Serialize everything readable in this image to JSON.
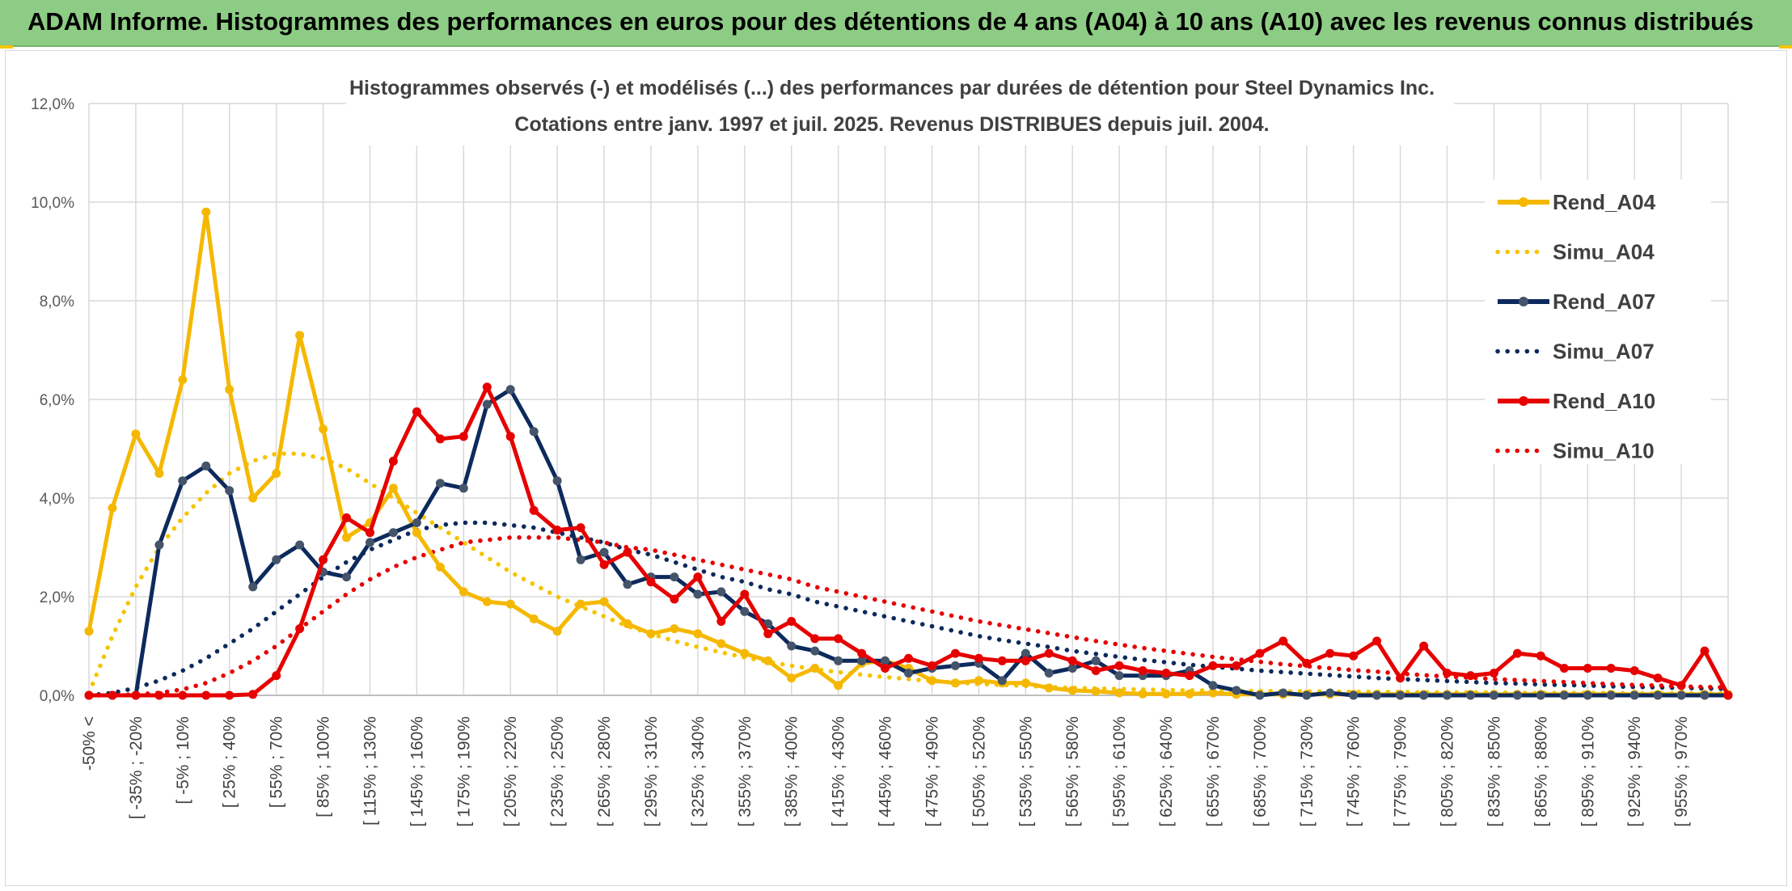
{
  "header": {
    "title": "ADAM Informe. Histogrammes des performances en euros pour des détentions de 4 ans (A04) à 10 ans (A10) avec les revenus connus distribués"
  },
  "chart_data": {
    "type": "line",
    "title": "Histogrammes observés (-) et modélisés (...) des performances par durées de détention pour Steel Dynamics Inc.",
    "subtitle": "Cotations entre janv. 1997 et juil. 2025. Revenus DISTRIBUES depuis juil. 2004.",
    "xlabel": "",
    "ylabel": "",
    "ylim": [
      0,
      12
    ],
    "y_ticks": [
      "0,0%",
      "2,0%",
      "4,0%",
      "6,0%",
      "8,0%",
      "10,0%",
      "12,0%"
    ],
    "grid": true,
    "legend_position": "right",
    "x_labels": [
      "-50% <",
      "[ -35% ; -20%",
      "[ -5% ; 10%",
      "[ 25% ; 40%",
      "[ 55% ; 70%",
      "[ 85% ; 100%",
      "[ 115% ; 130%",
      "[ 145% ; 160%",
      "[ 175% ; 190%",
      "[ 205% ; 220%",
      "[ 235% ; 250%",
      "[ 265% ; 280%",
      "[ 295% ; 310%",
      "[ 325% ; 340%",
      "[ 355% ; 370%",
      "[ 385% ; 400%",
      "[ 415% ; 430%",
      "[ 445% ; 460%",
      "[ 475% ; 490%",
      "[ 505% ; 520%",
      "[ 535% ; 550%",
      "[ 565% ; 580%",
      "[ 595% ; 610%",
      "[ 625% ; 640%",
      "[ 655% ; 670%",
      "[ 685% ; 700%",
      "[ 715% ; 730%",
      "[ 745% ; 760%",
      "[ 775% ; 790%",
      "[ 805% ; 820%",
      "[ 835% ; 850%",
      "[ 865% ; 880%",
      "[ 895% ; 910%",
      "[ 925% ; 940%",
      "[ 955% ; 970%"
    ],
    "categories_count": 71,
    "series": [
      {
        "name": "Rend_A04",
        "color": "#f5b800",
        "style": "solid",
        "values": [
          1.3,
          3.8,
          5.3,
          4.5,
          6.4,
          9.8,
          6.2,
          4.0,
          4.5,
          7.3,
          5.4,
          3.2,
          3.5,
          4.2,
          3.3,
          2.6,
          2.1,
          1.9,
          1.85,
          1.55,
          1.3,
          1.85,
          1.9,
          1.45,
          1.25,
          1.35,
          1.25,
          1.05,
          0.85,
          0.7,
          0.35,
          0.55,
          0.2,
          0.65,
          0.7,
          0.55,
          0.3,
          0.25,
          0.3,
          0.25,
          0.25,
          0.15,
          0.1,
          0.08,
          0.05,
          0.03,
          0.03,
          0.03,
          0.05,
          0.02,
          0.02,
          0.02,
          0.02,
          0.02,
          0.02,
          0.02,
          0.02,
          0.02,
          0.02,
          0.02,
          0.02,
          0.02,
          0.02,
          0.02,
          0.02,
          0.02,
          0.02,
          0.02,
          0.02,
          0.02,
          0.02
        ]
      },
      {
        "name": "Simu_A04",
        "color": "#f5c400",
        "style": "dotted",
        "values": [
          0.05,
          1.2,
          2.2,
          3.0,
          3.6,
          4.1,
          4.5,
          4.75,
          4.9,
          4.9,
          4.8,
          4.6,
          4.3,
          4.0,
          3.7,
          3.4,
          3.1,
          2.8,
          2.5,
          2.25,
          2.0,
          1.8,
          1.6,
          1.4,
          1.25,
          1.1,
          0.98,
          0.87,
          0.77,
          0.68,
          0.6,
          0.53,
          0.47,
          0.42,
          0.37,
          0.33,
          0.29,
          0.26,
          0.23,
          0.21,
          0.19,
          0.17,
          0.15,
          0.14,
          0.13,
          0.12,
          0.11,
          0.1,
          0.1,
          0.09,
          0.09,
          0.08,
          0.08,
          0.08,
          0.07,
          0.07,
          0.07,
          0.06,
          0.06,
          0.06,
          0.06,
          0.05,
          0.05,
          0.05,
          0.05,
          0.05,
          0.04,
          0.04,
          0.04,
          0.04,
          0.04
        ]
      },
      {
        "name": "Rend_A07",
        "color": "#0d2a5c",
        "style": "solid",
        "values": [
          0.0,
          0.0,
          0.0,
          3.05,
          4.35,
          4.65,
          4.15,
          2.2,
          2.75,
          3.05,
          2.5,
          2.4,
          3.1,
          3.3,
          3.5,
          4.3,
          4.2,
          5.9,
          6.2,
          5.35,
          4.35,
          2.75,
          2.9,
          2.25,
          2.4,
          2.4,
          2.05,
          2.1,
          1.7,
          1.45,
          1.0,
          0.9,
          0.7,
          0.7,
          0.7,
          0.45,
          0.55,
          0.6,
          0.65,
          0.3,
          0.85,
          0.45,
          0.55,
          0.7,
          0.4,
          0.4,
          0.4,
          0.5,
          0.2,
          0.1,
          0.0,
          0.05,
          0.0,
          0.05,
          0.0,
          0.0,
          0.0,
          0.0,
          0.0,
          0.0,
          0.0,
          0.0,
          0.0,
          0.0,
          0.0,
          0.0,
          0.0,
          0.0,
          0.0,
          0.0,
          0.0
        ]
      },
      {
        "name": "Simu_A07",
        "color": "#0d2a5c",
        "style": "dotted",
        "values": [
          0.0,
          0.05,
          0.15,
          0.3,
          0.5,
          0.75,
          1.05,
          1.35,
          1.7,
          2.05,
          2.4,
          2.7,
          2.95,
          3.15,
          3.35,
          3.45,
          3.5,
          3.5,
          3.45,
          3.4,
          3.3,
          3.2,
          3.1,
          2.95,
          2.85,
          2.7,
          2.55,
          2.4,
          2.3,
          2.15,
          2.05,
          1.9,
          1.8,
          1.7,
          1.6,
          1.5,
          1.4,
          1.3,
          1.2,
          1.12,
          1.05,
          0.98,
          0.9,
          0.84,
          0.78,
          0.72,
          0.67,
          0.62,
          0.58,
          0.54,
          0.5,
          0.47,
          0.44,
          0.41,
          0.38,
          0.35,
          0.33,
          0.31,
          0.29,
          0.27,
          0.25,
          0.24,
          0.22,
          0.21,
          0.2,
          0.18,
          0.17,
          0.16,
          0.15,
          0.14,
          0.13
        ]
      },
      {
        "name": "Rend_A10",
        "color": "#e60000",
        "style": "solid",
        "values": [
          0.0,
          0.0,
          0.0,
          0.0,
          0.0,
          0.0,
          0.0,
          0.02,
          0.4,
          1.35,
          2.75,
          3.6,
          3.3,
          4.75,
          5.75,
          5.2,
          5.25,
          6.25,
          5.25,
          3.75,
          3.35,
          3.4,
          2.65,
          2.9,
          2.3,
          1.95,
          2.4,
          1.5,
          2.05,
          1.25,
          1.5,
          1.15,
          1.15,
          0.85,
          0.55,
          0.75,
          0.6,
          0.85,
          0.75,
          0.7,
          0.7,
          0.85,
          0.7,
          0.5,
          0.6,
          0.5,
          0.45,
          0.4,
          0.6,
          0.6,
          0.85,
          1.1,
          0.65,
          0.85,
          0.8,
          1.1,
          0.35,
          1.0,
          0.45,
          0.4,
          0.45,
          0.85,
          0.8,
          0.55,
          0.55,
          0.55,
          0.5,
          0.35,
          0.2,
          0.9,
          0.0
        ]
      },
      {
        "name": "Simu_A10",
        "color": "#e60000",
        "style": "dotted",
        "values": [
          0.0,
          0.0,
          0.02,
          0.05,
          0.12,
          0.25,
          0.45,
          0.7,
          1.0,
          1.35,
          1.7,
          2.05,
          2.35,
          2.6,
          2.8,
          2.95,
          3.1,
          3.15,
          3.2,
          3.2,
          3.2,
          3.15,
          3.1,
          3.0,
          2.95,
          2.85,
          2.75,
          2.65,
          2.55,
          2.45,
          2.35,
          2.2,
          2.1,
          2.0,
          1.9,
          1.8,
          1.7,
          1.6,
          1.5,
          1.42,
          1.34,
          1.26,
          1.18,
          1.1,
          1.03,
          0.96,
          0.9,
          0.84,
          0.78,
          0.73,
          0.68,
          0.63,
          0.59,
          0.55,
          0.51,
          0.48,
          0.44,
          0.41,
          0.38,
          0.36,
          0.33,
          0.31,
          0.29,
          0.27,
          0.25,
          0.23,
          0.21,
          0.2,
          0.18,
          0.17,
          0.16
        ]
      }
    ]
  }
}
